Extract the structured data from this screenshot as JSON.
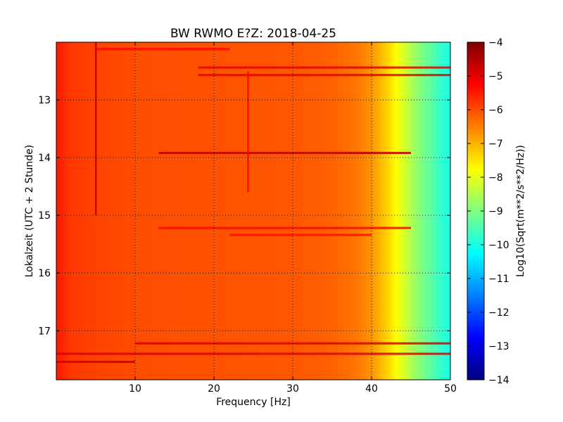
{
  "chart_data": {
    "type": "heatmap",
    "title": "BW RWMO E?Z: 2018-04-25",
    "xlabel": "Frequency [Hz]",
    "ylabel": "Lokalzeit (UTC + 2 Stunde)",
    "xlim": [
      0,
      50
    ],
    "ylim": [
      17.85,
      12.0
    ],
    "y_inverted": true,
    "x_ticks": [
      10,
      20,
      30,
      40,
      50
    ],
    "x_tick_labels": [
      "10",
      "20",
      "30",
      "40",
      "50"
    ],
    "y_ticks": [
      13,
      14,
      15,
      16,
      17
    ],
    "y_tick_labels": [
      "13",
      "14",
      "15",
      "16",
      "17"
    ],
    "grid": "dotted",
    "colormap": "jet",
    "colorbar": {
      "label": "Log10(Sqrt(m**2/s**2/Hz))",
      "range": [
        -14,
        -4
      ],
      "ticks": [
        -4,
        -5,
        -6,
        -7,
        -8,
        -9,
        -10,
        -11,
        -12,
        -13,
        -14
      ],
      "tick_labels": [
        "−4",
        "−5",
        "−6",
        "−7",
        "−8",
        "−9",
        "−10",
        "−11",
        "−12",
        "−13",
        "−14"
      ]
    },
    "frequency_profile": {
      "freq_hz": [
        0,
        2,
        5,
        10,
        20,
        30,
        35,
        38,
        40,
        41,
        42,
        43,
        44,
        45,
        46,
        47,
        48,
        49,
        50
      ],
      "log_amplitude": [
        -5.5,
        -5.8,
        -5.9,
        -6.0,
        -6.05,
        -6.1,
        -6.2,
        -6.4,
        -6.7,
        -7.0,
        -7.3,
        -7.7,
        -8.1,
        -8.5,
        -8.9,
        -9.2,
        -9.5,
        -9.8,
        -10.0
      ]
    },
    "horizontal_bands": [
      {
        "time": 13.9,
        "freq_range": [
          13,
          45
        ],
        "log_amplitude": -4.6
      },
      {
        "time": 12.42,
        "freq_range": [
          18,
          50
        ],
        "log_amplitude": -5.0
      },
      {
        "time": 12.55,
        "freq_range": [
          18,
          50
        ],
        "log_amplitude": -5.0
      },
      {
        "time": 12.1,
        "freq_range": [
          5,
          22
        ],
        "log_amplitude": -5.3
      },
      {
        "time": 15.2,
        "freq_range": [
          13,
          45
        ],
        "log_amplitude": -5.3
      },
      {
        "time": 15.32,
        "freq_range": [
          22,
          40
        ],
        "log_amplitude": -5.4
      },
      {
        "time": 17.2,
        "freq_range": [
          10,
          50
        ],
        "log_amplitude": -4.9
      },
      {
        "time": 17.38,
        "freq_range": [
          0,
          50
        ],
        "log_amplitude": -4.9
      },
      {
        "time": 17.52,
        "freq_range": [
          0,
          10
        ],
        "log_amplitude": -4.7
      }
    ],
    "vertical_lines": [
      {
        "freq": 5.0,
        "time_range": [
          12.0,
          15.0
        ],
        "log_amplitude": -4.6
      },
      {
        "freq": 24.3,
        "time_range": [
          12.5,
          14.6
        ],
        "log_amplitude": -5.3
      }
    ]
  }
}
